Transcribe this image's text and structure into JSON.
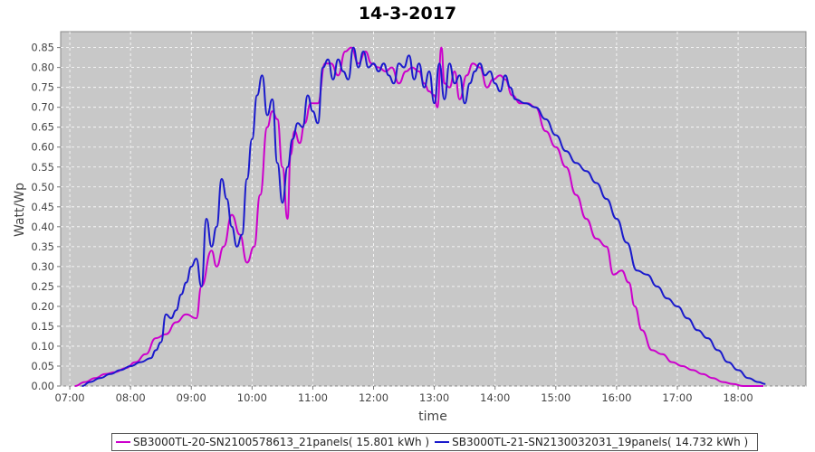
{
  "chart_data": {
    "type": "line",
    "title": "14-3-2017",
    "xlabel": "time",
    "ylabel": "Watt/Wp",
    "x_ticks": [
      "07:00",
      "08:00",
      "09:00",
      "10:00",
      "11:00",
      "12:00",
      "13:00",
      "14:00",
      "15:00",
      "16:00",
      "17:00",
      "18:00"
    ],
    "y_ticks": [
      "0.00",
      "0.05",
      "0.10",
      "0.15",
      "0.20",
      "0.25",
      "0.30",
      "0.35",
      "0.40",
      "0.45",
      "0.50",
      "0.55",
      "0.60",
      "0.65",
      "0.70",
      "0.75",
      "0.80",
      "0.85"
    ],
    "xlim": [
      "06:51",
      "19:07"
    ],
    "ylim": [
      0,
      0.89
    ],
    "grid": true,
    "legend_position": "bottom",
    "series": [
      {
        "name": "SB3000TL-20-SN2100578613_21panels( 15.801 kWh )",
        "color": "#cc00cc",
        "x": [
          "07:05",
          "07:15",
          "07:25",
          "07:35",
          "07:45",
          "07:55",
          "08:05",
          "08:15",
          "08:25",
          "08:35",
          "08:45",
          "08:55",
          "09:05",
          "09:10",
          "09:20",
          "09:25",
          "09:32",
          "09:40",
          "09:48",
          "09:55",
          "10:02",
          "10:08",
          "10:15",
          "10:20",
          "10:25",
          "10:30",
          "10:35",
          "10:38",
          "10:42",
          "10:47",
          "10:52",
          "10:58",
          "11:05",
          "11:12",
          "11:18",
          "11:25",
          "11:32",
          "11:38",
          "11:45",
          "11:52",
          "11:58",
          "12:05",
          "12:12",
          "12:18",
          "12:25",
          "12:32",
          "12:38",
          "12:45",
          "12:50",
          "12:55",
          "13:00",
          "13:03",
          "13:07",
          "13:10",
          "13:15",
          "13:20",
          "13:25",
          "13:32",
          "13:38",
          "13:45",
          "13:52",
          "13:58",
          "14:05",
          "14:10",
          "14:17",
          "14:25",
          "14:32",
          "14:40",
          "14:50",
          "15:00",
          "15:10",
          "15:20",
          "15:30",
          "15:40",
          "15:50",
          "15:57",
          "16:05",
          "16:12",
          "16:18",
          "16:25",
          "16:35",
          "16:45",
          "16:55",
          "17:05",
          "17:15",
          "17:25",
          "17:35",
          "17:45",
          "17:55",
          "18:05",
          "18:15",
          "18:25"
        ],
        "y": [
          0.0,
          0.01,
          0.02,
          0.03,
          0.035,
          0.045,
          0.06,
          0.08,
          0.12,
          0.13,
          0.16,
          0.18,
          0.17,
          0.25,
          0.34,
          0.3,
          0.35,
          0.43,
          0.38,
          0.31,
          0.35,
          0.48,
          0.65,
          0.69,
          0.67,
          0.55,
          0.42,
          0.58,
          0.64,
          0.61,
          0.66,
          0.71,
          0.71,
          0.81,
          0.81,
          0.78,
          0.84,
          0.85,
          0.81,
          0.84,
          0.81,
          0.8,
          0.79,
          0.8,
          0.76,
          0.79,
          0.8,
          0.79,
          0.76,
          0.74,
          0.73,
          0.7,
          0.85,
          0.76,
          0.75,
          0.79,
          0.72,
          0.78,
          0.81,
          0.8,
          0.75,
          0.77,
          0.78,
          0.77,
          0.73,
          0.71,
          0.71,
          0.7,
          0.64,
          0.6,
          0.55,
          0.48,
          0.42,
          0.37,
          0.35,
          0.28,
          0.29,
          0.26,
          0.2,
          0.14,
          0.09,
          0.08,
          0.06,
          0.05,
          0.04,
          0.03,
          0.02,
          0.01,
          0.005,
          0.0,
          0.0,
          0.0
        ]
      },
      {
        "name": "SB3000TL-21-SN2130032031_19panels( 14.732 kWh )",
        "color": "#1a1acc",
        "x": [
          "07:12",
          "07:20",
          "07:30",
          "07:40",
          "07:50",
          "08:00",
          "08:10",
          "08:20",
          "08:25",
          "08:30",
          "08:35",
          "08:40",
          "08:45",
          "08:50",
          "08:55",
          "09:00",
          "09:05",
          "09:10",
          "09:15",
          "09:20",
          "09:25",
          "09:30",
          "09:35",
          "09:40",
          "09:45",
          "09:50",
          "09:55",
          "10:00",
          "10:05",
          "10:10",
          "10:15",
          "10:20",
          "10:25",
          "10:30",
          "10:35",
          "10:40",
          "10:45",
          "10:50",
          "10:55",
          "11:00",
          "11:05",
          "11:10",
          "11:15",
          "11:20",
          "11:25",
          "11:30",
          "11:35",
          "11:40",
          "11:45",
          "11:50",
          "11:55",
          "12:00",
          "12:05",
          "12:10",
          "12:15",
          "12:20",
          "12:25",
          "12:30",
          "12:35",
          "12:40",
          "12:45",
          "12:50",
          "12:55",
          "13:00",
          "13:05",
          "13:10",
          "13:15",
          "13:20",
          "13:25",
          "13:30",
          "13:35",
          "13:40",
          "13:45",
          "13:50",
          "13:55",
          "14:00",
          "14:05",
          "14:10",
          "14:15",
          "14:20",
          "14:30",
          "14:40",
          "14:50",
          "15:00",
          "15:10",
          "15:20",
          "15:30",
          "15:40",
          "15:50",
          "16:00",
          "16:10",
          "16:20",
          "16:30",
          "16:40",
          "16:50",
          "17:00",
          "17:10",
          "17:20",
          "17:30",
          "17:40",
          "17:50",
          "18:00",
          "18:10",
          "18:20",
          "18:27"
        ],
        "y": [
          0.0,
          0.01,
          0.02,
          0.03,
          0.04,
          0.05,
          0.06,
          0.07,
          0.09,
          0.11,
          0.18,
          0.17,
          0.19,
          0.23,
          0.26,
          0.3,
          0.32,
          0.25,
          0.42,
          0.35,
          0.4,
          0.52,
          0.47,
          0.4,
          0.35,
          0.38,
          0.52,
          0.62,
          0.73,
          0.78,
          0.68,
          0.72,
          0.56,
          0.46,
          0.55,
          0.62,
          0.66,
          0.65,
          0.73,
          0.69,
          0.66,
          0.8,
          0.82,
          0.77,
          0.82,
          0.79,
          0.77,
          0.85,
          0.8,
          0.84,
          0.8,
          0.81,
          0.79,
          0.81,
          0.78,
          0.76,
          0.81,
          0.8,
          0.83,
          0.77,
          0.81,
          0.75,
          0.79,
          0.71,
          0.81,
          0.72,
          0.81,
          0.76,
          0.78,
          0.71,
          0.76,
          0.79,
          0.81,
          0.78,
          0.79,
          0.76,
          0.74,
          0.78,
          0.75,
          0.72,
          0.71,
          0.7,
          0.67,
          0.63,
          0.59,
          0.56,
          0.54,
          0.51,
          0.47,
          0.42,
          0.36,
          0.29,
          0.28,
          0.25,
          0.22,
          0.2,
          0.17,
          0.14,
          0.12,
          0.09,
          0.06,
          0.04,
          0.02,
          0.01,
          0.005
        ]
      }
    ]
  }
}
